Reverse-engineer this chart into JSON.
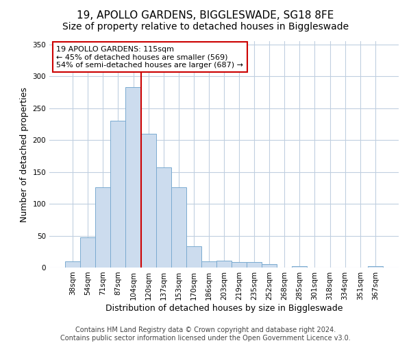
{
  "title": "19, APOLLO GARDENS, BIGGLESWADE, SG18 8FE",
  "subtitle": "Size of property relative to detached houses in Biggleswade",
  "xlabel": "Distribution of detached houses by size in Biggleswade",
  "ylabel": "Number of detached properties",
  "bar_labels": [
    "38sqm",
    "54sqm",
    "71sqm",
    "87sqm",
    "104sqm",
    "120sqm",
    "137sqm",
    "153sqm",
    "170sqm",
    "186sqm",
    "203sqm",
    "219sqm",
    "235sqm",
    "252sqm",
    "268sqm",
    "285sqm",
    "301sqm",
    "318sqm",
    "334sqm",
    "351sqm",
    "367sqm"
  ],
  "bar_heights": [
    10,
    47,
    126,
    230,
    283,
    210,
    157,
    126,
    33,
    10,
    11,
    9,
    9,
    5,
    0,
    2,
    0,
    0,
    0,
    0,
    2
  ],
  "bar_color": "#ccdcee",
  "bar_edge_color": "#7aaad0",
  "vline_x": 4.5,
  "vline_color": "#cc0000",
  "annotation_text": "19 APOLLO GARDENS: 115sqm\n← 45% of detached houses are smaller (569)\n54% of semi-detached houses are larger (687) →",
  "annotation_box_facecolor": "#ffffff",
  "annotation_box_edgecolor": "#cc0000",
  "ylim": [
    0,
    355
  ],
  "yticks": [
    0,
    50,
    100,
    150,
    200,
    250,
    300,
    350
  ],
  "footer_line1": "Contains HM Land Registry data © Crown copyright and database right 2024.",
  "footer_line2": "Contains public sector information licensed under the Open Government Licence v3.0.",
  "background_color": "#ffffff",
  "grid_color": "#c0cfe0",
  "title_fontsize": 11,
  "axis_label_fontsize": 9,
  "tick_fontsize": 7.5,
  "annotation_fontsize": 8,
  "footer_fontsize": 7
}
